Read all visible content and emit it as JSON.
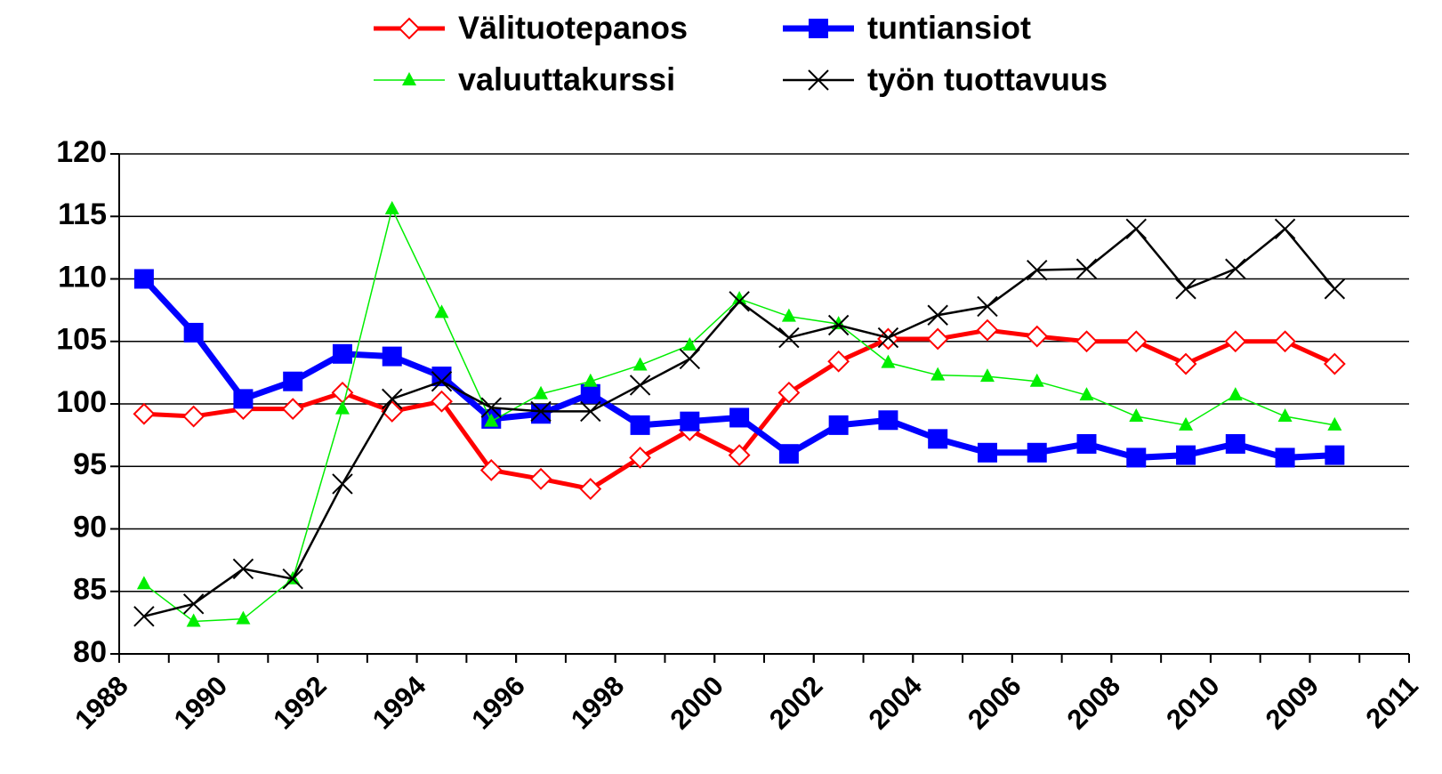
{
  "chart_data": {
    "type": "line",
    "xlim": [
      0,
      26
    ],
    "xticks": [
      {
        "value": 0,
        "label": "1988"
      },
      {
        "value": 2,
        "label": "1990"
      },
      {
        "value": 4,
        "label": "1992"
      },
      {
        "value": 6,
        "label": "1994"
      },
      {
        "value": 8,
        "label": "1996"
      },
      {
        "value": 10,
        "label": "1998"
      },
      {
        "value": 12,
        "label": "2000"
      },
      {
        "value": 14,
        "label": "2002"
      },
      {
        "value": 16,
        "label": "2004"
      },
      {
        "value": 18,
        "label": "2006"
      },
      {
        "value": 20,
        "label": "2008"
      },
      {
        "value": 22,
        "label": "2010"
      },
      {
        "value": 24,
        "label": "2009"
      },
      {
        "value": 26,
        "label": "2011"
      }
    ],
    "x": [
      0.5,
      1.5,
      2.5,
      3.5,
      4.5,
      5.5,
      6.5,
      7.5,
      8.5,
      9.5,
      10.5,
      11.5,
      12.5,
      13.5,
      14.5,
      15.5,
      16.5,
      17.5,
      18.5,
      19.5,
      20.5,
      21.5,
      22.5,
      23.5,
      24.5
    ],
    "ylim": [
      80,
      120
    ],
    "yticks": [
      80,
      85,
      90,
      95,
      100,
      105,
      110,
      115,
      120
    ],
    "grid": true,
    "series": [
      {
        "name": "Välituotepanos",
        "color": "#ff0000",
        "marker": "diamond",
        "values": [
          99.2,
          99.0,
          99.6,
          99.6,
          100.9,
          99.4,
          100.2,
          94.7,
          94.0,
          93.2,
          95.7,
          97.9,
          95.9,
          100.9,
          103.4,
          105.2,
          105.2,
          105.9,
          105.4,
          105.0,
          105.0,
          103.2,
          105.0,
          105.0,
          103.2
        ]
      },
      {
        "name": "tuntiansiot",
        "color": "#0000ff",
        "marker": "square",
        "values": [
          110.0,
          105.7,
          100.4,
          101.8,
          104.0,
          103.8,
          102.2,
          98.8,
          99.2,
          100.8,
          98.3,
          98.6,
          98.9,
          96.0,
          98.3,
          98.7,
          97.2,
          96.1,
          96.1,
          96.8,
          95.7,
          95.9,
          96.8,
          95.7,
          95.9
        ]
      },
      {
        "name": "valuuttakurssi",
        "color": "#00ee00",
        "marker": "triangle",
        "values": [
          85.6,
          82.6,
          82.8,
          86.0,
          99.6,
          115.6,
          107.3,
          98.6,
          100.8,
          101.8,
          103.1,
          104.7,
          108.4,
          107.0,
          106.4,
          103.3,
          102.3,
          102.2,
          101.8,
          100.7,
          99.0,
          98.3,
          100.7,
          99.0,
          98.3
        ]
      },
      {
        "name": "työn tuottavuus",
        "color": "#000000",
        "marker": "x",
        "values": [
          83.0,
          84.0,
          86.8,
          86.0,
          93.6,
          100.4,
          101.8,
          99.7,
          99.4,
          99.4,
          101.5,
          103.6,
          108.2,
          105.3,
          106.3,
          105.3,
          107.1,
          107.8,
          110.7,
          110.8,
          114.0,
          109.2,
          110.8,
          114.0,
          109.2
        ]
      }
    ]
  }
}
